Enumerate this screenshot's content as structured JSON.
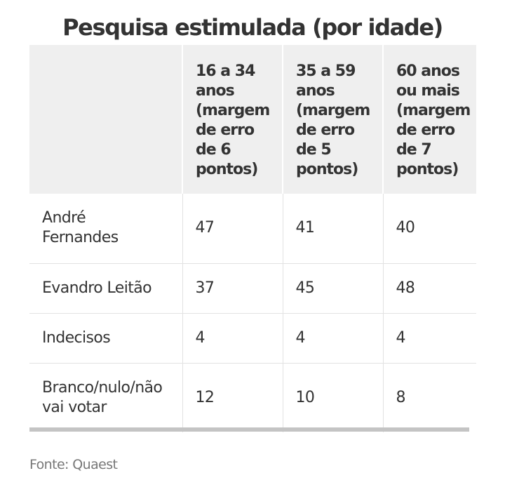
{
  "chart_data": {
    "type": "table",
    "title": "Pesquisa estimulada (por idade)",
    "columns": [
      "",
      "16 a 34 anos (margem de erro de 6 pontos)",
      "35 a 59 anos (margem de erro de 5 pontos)",
      "60 anos ou mais (margem de erro de 7 pontos)"
    ],
    "header_lines": [
      [],
      [
        "16 a 34",
        "anos",
        "(margem",
        "de erro",
        "de 6",
        "pontos)"
      ],
      [
        "35 a 59",
        "anos",
        "(margem",
        "de erro",
        "de 5",
        "pontos)"
      ],
      [
        "60 anos",
        "ou mais",
        "(margem",
        "de erro",
        "de 7",
        "pontos)"
      ]
    ],
    "rows": [
      {
        "label": "André Fernandes",
        "label_lines": [
          "André",
          "Fernandes"
        ],
        "values": [
          "47",
          "41",
          "40"
        ]
      },
      {
        "label": "Evandro Leitão",
        "label_lines": [
          "Evandro Leitão"
        ],
        "values": [
          "37",
          "45",
          "48"
        ]
      },
      {
        "label": "Indecisos",
        "label_lines": [
          "Indecisos"
        ],
        "values": [
          "4",
          "4",
          "4"
        ]
      },
      {
        "label": "Branco/nulo/não vai votar",
        "label_lines": [
          "Branco/nulo/não",
          "vai votar"
        ],
        "values": [
          "12",
          "10",
          "8"
        ]
      }
    ],
    "source": "Fonte: Quaest"
  }
}
